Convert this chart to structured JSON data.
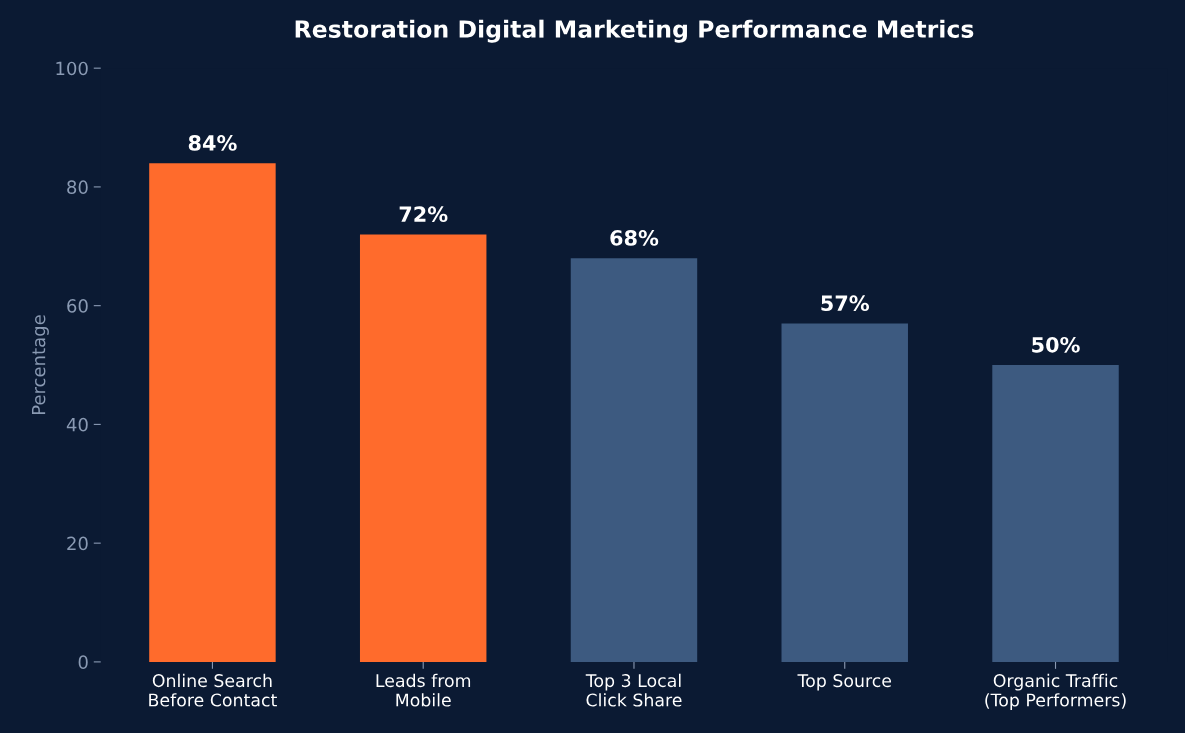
{
  "chart_data": {
    "type": "bar",
    "title": "Restoration Digital Marketing Performance Metrics",
    "ylabel": "Percentage",
    "categories": [
      "Online Search\nBefore Contact",
      "Leads from\nMobile",
      "Top 3 Local\nClick Share",
      "Top Source",
      "Organic Traffic\n(Top Performers)"
    ],
    "values": [
      84,
      72,
      68,
      57,
      50
    ],
    "colors": [
      "#ff6b2c",
      "#ff6b2c",
      "#3d5a80",
      "#3d5a80",
      "#3d5a80"
    ],
    "value_labels": [
      "84%",
      "72%",
      "68%",
      "57%",
      "50%"
    ],
    "ylim": [
      0,
      100
    ],
    "yticks": [
      0,
      20,
      40,
      60,
      80,
      100
    ],
    "grid": false
  }
}
